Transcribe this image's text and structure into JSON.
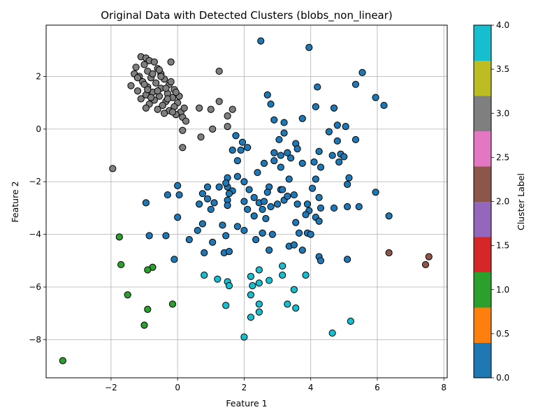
{
  "chart_data": {
    "type": "scatter",
    "title": "Original Data with Detected Clusters (blobs_non_linear)",
    "xlabel": "Feature 1",
    "ylabel": "Feature 2",
    "xlim": [
      -3.95,
      8.1
    ],
    "ylim": [
      -9.45,
      3.95
    ],
    "xticks": [
      -2,
      0,
      2,
      4,
      6,
      8
    ],
    "yticks": [
      -8,
      -6,
      -4,
      -2,
      0,
      2
    ],
    "xtick_labels": [
      "−2",
      "0",
      "2",
      "4",
      "6",
      "8"
    ],
    "ytick_labels": [
      "−8",
      "−6",
      "−4",
      "−2",
      "0",
      "2"
    ],
    "grid": true,
    "colorbar": {
      "label": "Cluster Label",
      "range": [
        0,
        4
      ],
      "ticks": [
        0.0,
        0.5,
        1.0,
        1.5,
        2.0,
        2.5,
        3.0,
        3.5,
        4.0
      ],
      "tick_labels": [
        "0.0",
        "0.5",
        "1.0",
        "1.5",
        "2.0",
        "2.5",
        "3.0",
        "3.5",
        "4.0"
      ],
      "colors": [
        "#1f77b4",
        "#ff7f0e",
        "#2ca02c",
        "#d62728",
        "#9467bd",
        "#8c564b",
        "#e377c2",
        "#7f7f7f",
        "#bcbd22",
        "#17becf"
      ]
    },
    "cluster_colors": {
      "0": "#1f77b4",
      "1": "#2ca02c",
      "2": "#8c564b",
      "3": "#7f7f7f",
      "4": "#17becf"
    },
    "series": [
      {
        "cluster": 3,
        "points": [
          [
            -1.1,
            2.75
          ],
          [
            -0.95,
            2.7
          ],
          [
            -1.25,
            2.35
          ],
          [
            -0.85,
            2.6
          ],
          [
            -0.7,
            2.55
          ],
          [
            -1.0,
            2.45
          ],
          [
            -0.6,
            2.3
          ],
          [
            -1.3,
            2.1
          ],
          [
            -0.9,
            2.2
          ],
          [
            -0.5,
            2.1
          ],
          [
            -1.15,
            2.0
          ],
          [
            -0.8,
            1.95
          ],
          [
            -0.4,
            1.9
          ],
          [
            -1.05,
            1.8
          ],
          [
            -0.65,
            1.75
          ],
          [
            -0.25,
            1.7
          ],
          [
            -1.4,
            1.65
          ],
          [
            -0.9,
            1.6
          ],
          [
            -0.5,
            1.55
          ],
          [
            -0.1,
            1.5
          ],
          [
            -1.2,
            1.45
          ],
          [
            -0.75,
            1.4
          ],
          [
            -0.3,
            1.35
          ],
          [
            -0.95,
            1.3
          ],
          [
            -0.55,
            1.25
          ],
          [
            -0.15,
            1.2
          ],
          [
            -1.1,
            1.15
          ],
          [
            -0.7,
            1.1
          ],
          [
            -0.35,
            1.05
          ],
          [
            0.0,
            1.0
          ],
          [
            -0.85,
            0.95
          ],
          [
            -0.45,
            0.9
          ],
          [
            -0.1,
            0.85
          ],
          [
            -0.95,
            0.8
          ],
          [
            -0.6,
            0.75
          ],
          [
            -0.25,
            0.7
          ],
          [
            0.1,
            0.65
          ],
          [
            -0.4,
            0.6
          ],
          [
            -0.05,
            0.55
          ],
          [
            0.2,
            0.8
          ],
          [
            0.15,
            0.45
          ],
          [
            0.25,
            0.3
          ],
          [
            -0.2,
            1.8
          ],
          [
            -0.5,
            2.0
          ],
          [
            -0.75,
            2.1
          ],
          [
            -1.0,
            1.7
          ],
          [
            -0.6,
            1.45
          ],
          [
            -0.3,
            1.15
          ],
          [
            0.05,
            1.25
          ],
          [
            -0.8,
            1.2
          ],
          [
            -0.2,
            2.55
          ],
          [
            0.65,
            0.8
          ],
          [
            1.0,
            0.75
          ],
          [
            1.25,
            1.05
          ],
          [
            1.5,
            0.5
          ],
          [
            1.65,
            0.75
          ],
          [
            0.7,
            -0.3
          ],
          [
            1.05,
            0.0
          ],
          [
            1.5,
            0.1
          ],
          [
            0.15,
            -0.05
          ],
          [
            0.15,
            -0.7
          ],
          [
            1.25,
            2.2
          ],
          [
            -1.95,
            -1.5
          ],
          [
            -0.45,
            0.9
          ],
          [
            -0.15,
            0.65
          ],
          [
            -0.35,
            1.55
          ],
          [
            -1.2,
            1.95
          ],
          [
            -0.55,
            2.25
          ],
          [
            -0.9,
            1.5
          ],
          [
            -0.05,
            1.4
          ]
        ]
      },
      {
        "cluster": 0,
        "points": [
          [
            2.5,
            3.35
          ],
          [
            3.95,
            3.1
          ],
          [
            5.55,
            2.15
          ],
          [
            4.2,
            1.6
          ],
          [
            5.35,
            1.7
          ],
          [
            5.95,
            1.2
          ],
          [
            6.2,
            0.9
          ],
          [
            2.7,
            1.3
          ],
          [
            2.8,
            0.95
          ],
          [
            4.15,
            0.85
          ],
          [
            4.7,
            0.8
          ],
          [
            3.2,
            0.25
          ],
          [
            2.9,
            0.35
          ],
          [
            3.75,
            0.4
          ],
          [
            4.8,
            0.15
          ],
          [
            5.05,
            0.1
          ],
          [
            4.55,
            -0.1
          ],
          [
            3.2,
            -0.15
          ],
          [
            3.05,
            -0.4
          ],
          [
            3.55,
            -0.55
          ],
          [
            5.35,
            -0.4
          ],
          [
            4.8,
            -0.45
          ],
          [
            1.75,
            -0.25
          ],
          [
            1.95,
            -0.5
          ],
          [
            2.1,
            -0.7
          ],
          [
            1.65,
            -0.8
          ],
          [
            1.9,
            -0.8
          ],
          [
            3.3,
            -0.9
          ],
          [
            3.6,
            -0.75
          ],
          [
            4.25,
            -0.85
          ],
          [
            4.65,
            -1.0
          ],
          [
            4.9,
            -0.95
          ],
          [
            5.0,
            -1.05
          ],
          [
            2.9,
            -0.9
          ],
          [
            3.1,
            -1.0
          ],
          [
            3.4,
            -1.1
          ],
          [
            2.9,
            -1.2
          ],
          [
            2.6,
            -1.3
          ],
          [
            1.8,
            -1.2
          ],
          [
            3.1,
            -1.45
          ],
          [
            3.75,
            -1.3
          ],
          [
            4.1,
            -1.25
          ],
          [
            4.3,
            -1.45
          ],
          [
            4.85,
            -1.25
          ],
          [
            2.4,
            -1.65
          ],
          [
            1.5,
            -1.85
          ],
          [
            1.8,
            -1.8
          ],
          [
            2.0,
            -2.0
          ],
          [
            3.35,
            -1.9
          ],
          [
            4.15,
            -1.9
          ],
          [
            5.15,
            -1.85
          ],
          [
            0.0,
            -2.15
          ],
          [
            0.9,
            -2.2
          ],
          [
            1.25,
            -2.2
          ],
          [
            1.5,
            -2.2
          ],
          [
            1.65,
            -2.35
          ],
          [
            2.15,
            -2.3
          ],
          [
            2.75,
            -2.2
          ],
          [
            4.05,
            -2.25
          ],
          [
            5.1,
            -2.1
          ],
          [
            5.95,
            -2.4
          ],
          [
            0.75,
            -2.45
          ],
          [
            1.55,
            -2.45
          ],
          [
            2.3,
            -2.6
          ],
          [
            2.7,
            -2.4
          ],
          [
            3.1,
            -2.3
          ],
          [
            3.5,
            -2.5
          ],
          [
            4.25,
            -2.6
          ],
          [
            -0.3,
            -2.5
          ],
          [
            0.05,
            -2.5
          ],
          [
            0.9,
            -2.65
          ],
          [
            1.1,
            -2.8
          ],
          [
            1.5,
            -2.7
          ],
          [
            2.0,
            -2.75
          ],
          [
            2.45,
            -2.8
          ],
          [
            2.8,
            -2.95
          ],
          [
            3.2,
            -2.7
          ],
          [
            3.6,
            -2.85
          ],
          [
            3.9,
            -2.85
          ],
          [
            4.3,
            -3.0
          ],
          [
            4.7,
            -3.0
          ],
          [
            5.1,
            -2.95
          ],
          [
            5.45,
            -2.95
          ],
          [
            -0.95,
            -2.8
          ],
          [
            0.65,
            -2.85
          ],
          [
            1.0,
            -3.05
          ],
          [
            1.5,
            -2.9
          ],
          [
            2.1,
            -3.05
          ],
          [
            2.55,
            -3.05
          ],
          [
            3.0,
            -2.85
          ],
          [
            3.3,
            -2.55
          ],
          [
            3.95,
            -3.1
          ],
          [
            4.15,
            -3.35
          ],
          [
            6.35,
            -3.3
          ],
          [
            0.0,
            -3.35
          ],
          [
            0.6,
            -3.85
          ],
          [
            0.75,
            -3.6
          ],
          [
            1.35,
            -3.65
          ],
          [
            1.8,
            -3.7
          ],
          [
            2.3,
            -3.3
          ],
          [
            2.65,
            -3.4
          ],
          [
            3.55,
            -3.55
          ],
          [
            3.85,
            -3.25
          ],
          [
            4.25,
            -3.5
          ],
          [
            -0.85,
            -4.05
          ],
          [
            -0.35,
            -4.05
          ],
          [
            0.35,
            -4.2
          ],
          [
            1.05,
            -4.3
          ],
          [
            1.45,
            -4.05
          ],
          [
            2.0,
            -3.85
          ],
          [
            2.55,
            -3.95
          ],
          [
            2.85,
            -4.0
          ],
          [
            3.65,
            -3.95
          ],
          [
            3.9,
            -3.95
          ],
          [
            4.0,
            -4.0
          ],
          [
            0.8,
            -4.7
          ],
          [
            1.4,
            -4.7
          ],
          [
            1.55,
            -4.65
          ],
          [
            2.35,
            -4.2
          ],
          [
            2.75,
            -4.6
          ],
          [
            3.35,
            -4.45
          ],
          [
            3.5,
            -4.4
          ],
          [
            3.75,
            -4.6
          ],
          [
            -0.1,
            -4.95
          ],
          [
            4.25,
            -4.85
          ],
          [
            4.3,
            -5.0
          ],
          [
            5.1,
            -4.95
          ],
          [
            2.6,
            -2.75
          ],
          [
            3.15,
            -2.3
          ],
          [
            1.45,
            -2.05
          ]
        ]
      },
      {
        "cluster": 4,
        "points": [
          [
            0.8,
            -5.55
          ],
          [
            1.2,
            -5.7
          ],
          [
            1.5,
            -5.8
          ],
          [
            1.55,
            -5.95
          ],
          [
            2.2,
            -5.6
          ],
          [
            2.45,
            -5.35
          ],
          [
            2.45,
            -5.85
          ],
          [
            2.75,
            -5.75
          ],
          [
            3.15,
            -5.2
          ],
          [
            3.15,
            -5.55
          ],
          [
            3.85,
            -5.55
          ],
          [
            2.25,
            -5.95
          ],
          [
            2.2,
            -6.3
          ],
          [
            3.5,
            -6.1
          ],
          [
            1.45,
            -6.7
          ],
          [
            2.45,
            -6.65
          ],
          [
            3.3,
            -6.65
          ],
          [
            3.55,
            -6.8
          ],
          [
            2.45,
            -6.95
          ],
          [
            2.2,
            -7.15
          ],
          [
            5.2,
            -7.3
          ],
          [
            2.0,
            -7.9
          ],
          [
            4.65,
            -7.75
          ]
        ]
      },
      {
        "cluster": 1,
        "points": [
          [
            -1.75,
            -4.1
          ],
          [
            -1.7,
            -5.15
          ],
          [
            -0.75,
            -5.25
          ],
          [
            -0.9,
            -5.35
          ],
          [
            -1.5,
            -6.3
          ],
          [
            -0.9,
            -6.85
          ],
          [
            -0.15,
            -6.65
          ],
          [
            -1.0,
            -7.45
          ],
          [
            -3.45,
            -8.8
          ]
        ]
      },
      {
        "cluster": 2,
        "points": [
          [
            6.35,
            -4.7
          ],
          [
            7.45,
            -5.15
          ],
          [
            7.55,
            -4.85
          ]
        ]
      }
    ]
  }
}
